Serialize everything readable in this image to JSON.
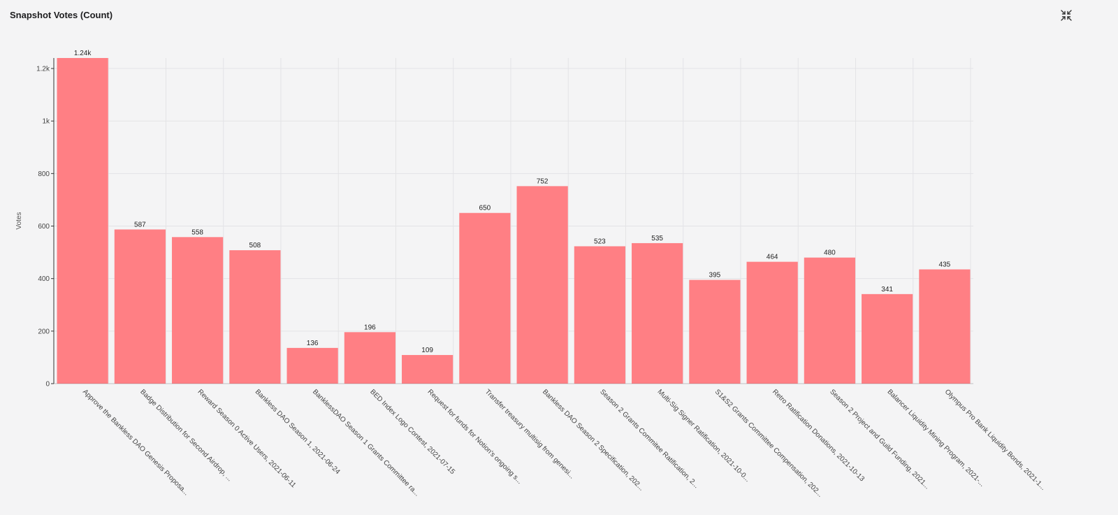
{
  "header": {
    "title": "Snapshot Votes (Count)"
  },
  "toolbar": {
    "collapse_icon": "collapse-arrows-icon"
  },
  "colors": {
    "bar": "#ff7f84",
    "grid": "#e3e3e6",
    "axis": "#333333",
    "background": "#f4f4f5"
  },
  "chart_data": {
    "type": "bar",
    "title": "Snapshot Votes (Count)",
    "ylabel": "Votes",
    "xlabel": "",
    "ylim": [
      0,
      1240
    ],
    "yticks": [
      0,
      200,
      400,
      600,
      800,
      1000,
      1200
    ],
    "ytick_labels": [
      "0",
      "200",
      "400",
      "600",
      "800",
      "1k",
      "1.2k"
    ],
    "grid": true,
    "categories": [
      "Approve the Bankless DAO Genesis Proposa...",
      "Badge Distribution for Second Airdrop, ...",
      "Reward Season 0 Active Users, 2021-06-11",
      "Bankless DAO Season 1, 2021-06-24",
      "BanklessDAO Season 1 Grants Committee ra...",
      "BED Index Logo Contest, 2021-07-15",
      "Request for funds for Notion's ongoing s...",
      "Transfer treasury multisig from genesi...",
      "Bankless DAO Season 2 Specification, 202...",
      "Season 2 Grants Commitee Ratification, 2...",
      "Multi-Sig Signer Ratification, 2021-10-0...",
      "S1&S2 Grants Committee Compensation, 202...",
      "Retro Ratification Donations, 2021-10-13",
      "Season 2 Project and Guild Funding, 2021...",
      "Balancer Liquidity Mining Program, 2021-...",
      "Olympus Pro Bank Liquidity Bonds, 2021-1..."
    ],
    "values": [
      1240,
      587,
      558,
      508,
      136,
      196,
      109,
      650,
      752,
      523,
      535,
      395,
      464,
      480,
      341,
      435
    ],
    "value_labels": [
      "1.24k",
      "587",
      "558",
      "508",
      "136",
      "196",
      "109",
      "650",
      "752",
      "523",
      "535",
      "395",
      "464",
      "480",
      "341",
      "435"
    ]
  }
}
